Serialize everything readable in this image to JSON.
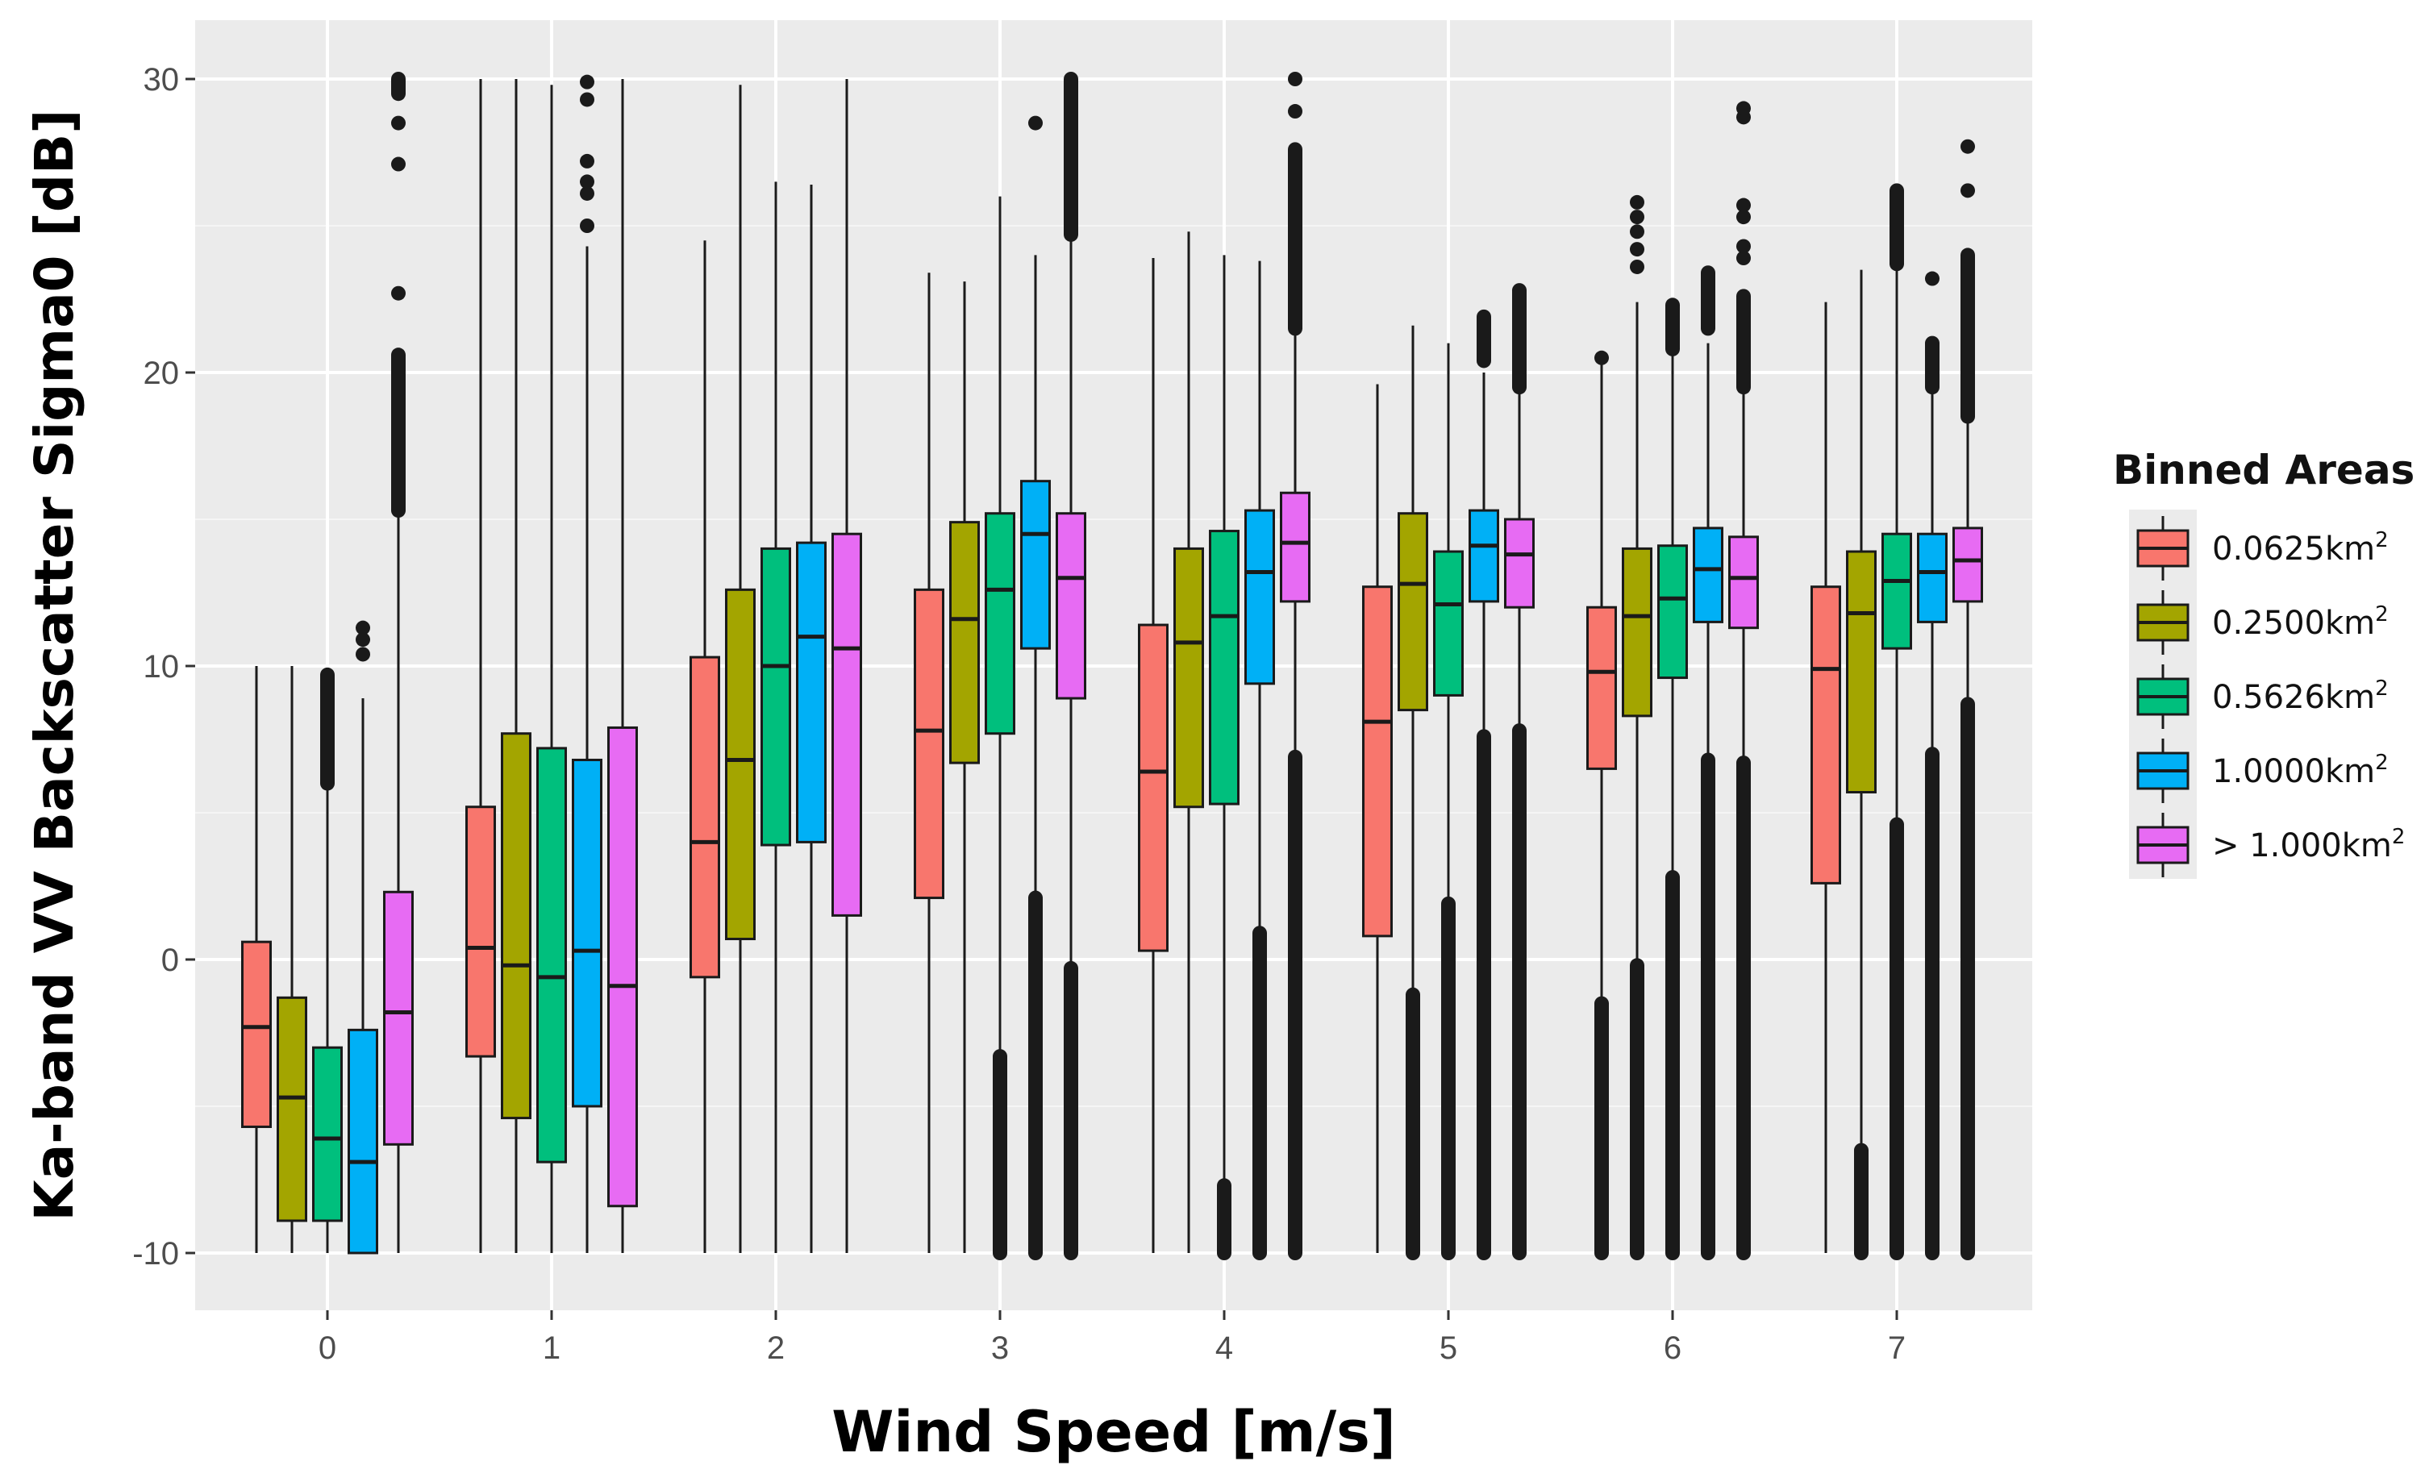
{
  "chart_data": {
    "type": "boxplot",
    "title": "",
    "xlabel": "Wind Speed [m/s]",
    "ylabel": "Ka-band VV Backscatter Sigma0 [dB]",
    "ylim": [
      -12,
      32
    ],
    "yticks": [
      -10,
      0,
      10,
      20,
      30
    ],
    "y_minor_ticks": [
      -5,
      5,
      15,
      25
    ],
    "categories": [
      "0",
      "1",
      "2",
      "3",
      "4",
      "5",
      "6",
      "7"
    ],
    "grid": true,
    "legend": {
      "title": "Binned Areas",
      "position": "right",
      "unit": "km",
      "unit_superscript": "2"
    },
    "series": [
      {
        "name": "0.0625km2",
        "label_prefix": "0.0625",
        "color": "#F8766D",
        "boxes": [
          {
            "q1": -5.7,
            "median": -2.3,
            "q3": 0.6,
            "wlo": -10,
            "whi": 10,
            "outliers_top": [],
            "outliers_bottom": []
          },
          {
            "q1": -3.3,
            "median": 0.4,
            "q3": 5.2,
            "wlo": -10,
            "whi": 30,
            "outliers_top": [],
            "outliers_bottom": []
          },
          {
            "q1": -0.6,
            "median": 4.0,
            "q3": 10.3,
            "wlo": -10,
            "whi": 24.5,
            "outliers_top": [],
            "outliers_bottom": []
          },
          {
            "q1": 2.1,
            "median": 7.8,
            "q3": 12.6,
            "wlo": -10,
            "whi": 23.4,
            "outliers_top": [],
            "outliers_bottom": []
          },
          {
            "q1": 0.3,
            "median": 6.4,
            "q3": 11.4,
            "wlo": -10,
            "whi": 23.9,
            "outliers_top": [],
            "outliers_bottom": []
          },
          {
            "q1": 0.8,
            "median": 8.1,
            "q3": 12.7,
            "wlo": -10,
            "whi": 19.6,
            "outliers_top": [],
            "outliers_bottom": []
          },
          {
            "q1": 6.5,
            "median": 9.8,
            "q3": 12.0,
            "wlo": -1.5,
            "whi": 20.4,
            "outliers_top": [
              20.5
            ],
            "outliers_bottom": [
              [
                -10,
                -1.5
              ]
            ]
          },
          {
            "q1": 2.6,
            "median": 9.9,
            "q3": 12.7,
            "wlo": -10,
            "whi": 22.4,
            "outliers_top": [],
            "outliers_bottom": []
          }
        ]
      },
      {
        "name": "0.2500km2",
        "label_prefix": "0.2500",
        "color": "#A3A500",
        "boxes": [
          {
            "q1": -8.9,
            "median": -4.7,
            "q3": -1.3,
            "wlo": -10,
            "whi": 10,
            "outliers_top": [],
            "outliers_bottom": []
          },
          {
            "q1": -5.4,
            "median": -0.2,
            "q3": 7.7,
            "wlo": -10,
            "whi": 30,
            "outliers_top": [],
            "outliers_bottom": []
          },
          {
            "q1": 0.7,
            "median": 6.8,
            "q3": 12.6,
            "wlo": -10,
            "whi": 29.8,
            "outliers_top": [],
            "outliers_bottom": []
          },
          {
            "q1": 6.7,
            "median": 11.6,
            "q3": 14.9,
            "wlo": -10,
            "whi": 23.1,
            "outliers_top": [],
            "outliers_bottom": []
          },
          {
            "q1": 5.2,
            "median": 10.8,
            "q3": 14.0,
            "wlo": -10,
            "whi": 24.8,
            "outliers_top": [],
            "outliers_bottom": []
          },
          {
            "q1": 8.5,
            "median": 12.8,
            "q3": 15.2,
            "wlo": -1.2,
            "whi": 21.6,
            "outliers_top": [],
            "outliers_bottom": [
              [
                -10,
                -1.2
              ]
            ]
          },
          {
            "q1": 8.3,
            "median": 11.7,
            "q3": 14.0,
            "wlo": -0.2,
            "whi": 22.4,
            "outliers_top": [
              23.6,
              24.2,
              24.8,
              25.3,
              25.8
            ],
            "outliers_bottom": [
              [
                -10,
                -0.2
              ]
            ]
          },
          {
            "q1": 5.7,
            "median": 11.8,
            "q3": 13.9,
            "wlo": -6.5,
            "whi": 23.5,
            "outliers_top": [],
            "outliers_bottom": [
              [
                -10,
                -6.5
              ]
            ]
          }
        ]
      },
      {
        "name": "0.5626km2",
        "label_prefix": "0.5626",
        "color": "#00BF7D",
        "boxes": [
          {
            "q1": -8.9,
            "median": -6.1,
            "q3": -3.0,
            "wlo": -10,
            "whi": 5.9,
            "outliers_top": [
              [
                6.0,
                9.7
              ]
            ],
            "outliers_bottom": []
          },
          {
            "q1": -6.9,
            "median": -0.6,
            "q3": 7.2,
            "wlo": -10,
            "whi": 29.8,
            "outliers_top": [],
            "outliers_bottom": []
          },
          {
            "q1": 3.9,
            "median": 10.0,
            "q3": 14.0,
            "wlo": -10,
            "whi": 26.5,
            "outliers_top": [],
            "outliers_bottom": []
          },
          {
            "q1": 7.7,
            "median": 12.6,
            "q3": 15.2,
            "wlo": -3.3,
            "whi": 26.0,
            "outliers_top": [],
            "outliers_bottom": [
              [
                -10,
                -3.3
              ]
            ]
          },
          {
            "q1": 5.3,
            "median": 11.7,
            "q3": 14.6,
            "wlo": -7.7,
            "whi": 24.0,
            "outliers_top": [],
            "outliers_bottom": [
              [
                -10,
                -7.7
              ]
            ]
          },
          {
            "q1": 9.0,
            "median": 12.1,
            "q3": 13.9,
            "wlo": 1.9,
            "whi": 21.0,
            "outliers_top": [],
            "outliers_bottom": [
              [
                -10,
                1.9
              ]
            ]
          },
          {
            "q1": 9.6,
            "median": 12.3,
            "q3": 14.1,
            "wlo": 2.8,
            "whi": 22.4,
            "outliers_top": [
              [
                20.8,
                22.3
              ]
            ],
            "outliers_bottom": [
              [
                -10,
                2.8
              ]
            ]
          },
          {
            "q1": 10.6,
            "median": 12.9,
            "q3": 14.5,
            "wlo": 4.6,
            "whi": 23.5,
            "outliers_top": [
              [
                23.7,
                26.2
              ]
            ],
            "outliers_bottom": [
              [
                -10,
                4.6
              ]
            ]
          }
        ]
      },
      {
        "name": "1.0000km2",
        "label_prefix": "1.0000",
        "color": "#00B0F6",
        "boxes": [
          {
            "q1": -10.0,
            "median": -6.9,
            "q3": -2.4,
            "wlo": -10,
            "whi": 8.9,
            "outliers_top": [
              10.4,
              10.9,
              11.3
            ],
            "outliers_bottom": []
          },
          {
            "q1": -5.0,
            "median": 0.3,
            "q3": 6.8,
            "wlo": -10,
            "whi": 24.3,
            "outliers_top": [
              25.0,
              26.1,
              26.5,
              27.2,
              29.3,
              29.9
            ],
            "outliers_bottom": []
          },
          {
            "q1": 4.0,
            "median": 11.0,
            "q3": 14.2,
            "wlo": -10,
            "whi": 26.4,
            "outliers_top": [],
            "outliers_bottom": []
          },
          {
            "q1": 10.6,
            "median": 14.5,
            "q3": 16.3,
            "wlo": 2.1,
            "whi": 24.0,
            "outliers_top": [
              28.5
            ],
            "outliers_bottom": [
              [
                -10,
                2.1
              ]
            ]
          },
          {
            "q1": 9.4,
            "median": 13.2,
            "q3": 15.3,
            "wlo": 0.9,
            "whi": 23.8,
            "outliers_top": [],
            "outliers_bottom": [
              [
                -10,
                0.9
              ]
            ]
          },
          {
            "q1": 12.2,
            "median": 14.1,
            "q3": 15.3,
            "wlo": 7.6,
            "whi": 20.0,
            "outliers_top": [
              [
                20.4,
                21.9
              ]
            ],
            "outliers_bottom": [
              [
                -10,
                7.6
              ]
            ]
          },
          {
            "q1": 11.5,
            "median": 13.3,
            "q3": 14.7,
            "wlo": 6.8,
            "whi": 21.0,
            "outliers_top": [
              [
                21.5,
                23.4
              ]
            ],
            "outliers_bottom": [
              [
                -10,
                6.8
              ]
            ]
          },
          {
            "q1": 11.5,
            "median": 13.2,
            "q3": 14.5,
            "wlo": 7.0,
            "whi": 19.3,
            "outliers_top": [
              [
                19.5,
                21.0
              ],
              23.2
            ],
            "outliers_bottom": [
              [
                -10,
                7.0
              ]
            ]
          }
        ]
      },
      {
        "name": "> 1.000km2",
        "label_prefix": "> 1.000",
        "color": "#E76BF3",
        "boxes": [
          {
            "q1": -6.3,
            "median": -1.8,
            "q3": 2.3,
            "wlo": -10,
            "whi": 15.2,
            "outliers_top": [
              [
                15.3,
                20.6
              ],
              22.7,
              27.1,
              28.5,
              [
                29.5,
                30.0
              ]
            ],
            "outliers_bottom": []
          },
          {
            "q1": -8.4,
            "median": -0.9,
            "q3": 7.9,
            "wlo": -10,
            "whi": 30,
            "outliers_top": [],
            "outliers_bottom": []
          },
          {
            "q1": 1.5,
            "median": 10.6,
            "q3": 14.5,
            "wlo": -10,
            "whi": 30,
            "outliers_top": [],
            "outliers_bottom": []
          },
          {
            "q1": 8.9,
            "median": 13.0,
            "q3": 15.2,
            "wlo": -0.3,
            "whi": 24.6,
            "outliers_top": [
              [
                24.7,
                30.0
              ]
            ],
            "outliers_bottom": [
              [
                -10,
                -0.3
              ]
            ]
          },
          {
            "q1": 12.2,
            "median": 14.2,
            "q3": 15.9,
            "wlo": 6.9,
            "whi": 21.4,
            "outliers_top": [
              [
                21.5,
                27.6
              ],
              28.9,
              30.0
            ],
            "outliers_bottom": [
              [
                -10,
                6.9
              ]
            ]
          },
          {
            "q1": 12.0,
            "median": 13.8,
            "q3": 15.0,
            "wlo": 7.8,
            "whi": 19.3,
            "outliers_top": [
              [
                19.5,
                22.8
              ]
            ],
            "outliers_bottom": [
              [
                -10,
                7.8
              ]
            ]
          },
          {
            "q1": 11.3,
            "median": 13.0,
            "q3": 14.4,
            "wlo": 6.7,
            "whi": 19.3,
            "outliers_top": [
              [
                19.5,
                22.6
              ],
              23.9,
              24.3,
              25.3,
              25.7,
              28.7,
              29.0
            ],
            "outliers_bottom": [
              [
                -10,
                6.7
              ]
            ]
          },
          {
            "q1": 12.2,
            "median": 13.6,
            "q3": 14.7,
            "wlo": 8.7,
            "whi": 18.3,
            "outliers_top": [
              [
                18.5,
                24.0
              ],
              26.2,
              27.7
            ],
            "outliers_bottom": [
              [
                -10,
                8.7
              ]
            ]
          }
        ]
      }
    ]
  }
}
